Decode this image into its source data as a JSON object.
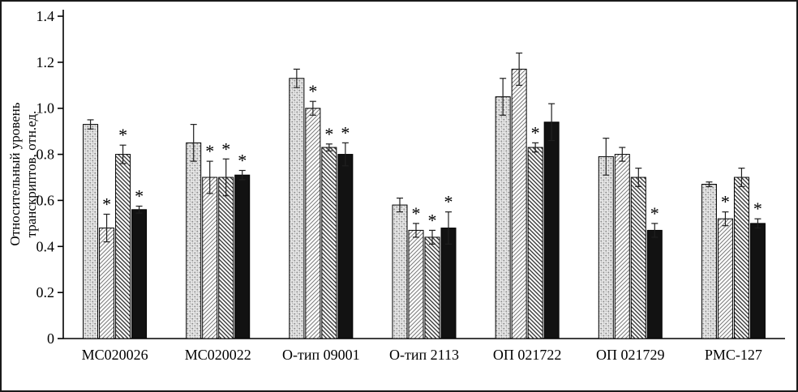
{
  "figure": {
    "kind": "scientific-bar-chart",
    "background": "#ffffff",
    "border_color": "#1a1a1a"
  },
  "y_axis": {
    "label_line1": "Относительный уровень",
    "label_line2": "транскриптов, отн.ед.",
    "min": 0,
    "max": 1.4,
    "step": 0.2,
    "tick_labels": [
      "0",
      "0.2",
      "0.4",
      "0.6",
      "0.8",
      "1.0",
      "1.2",
      "1.4"
    ]
  },
  "chart_data": {
    "type": "bar",
    "title": "",
    "xlabel": "",
    "ylabel": "Относительный уровень транскриптов, отн.ед.",
    "ylim": [
      0,
      1.4
    ],
    "grid": false,
    "legend": "none",
    "significance_marker": "*",
    "categories": [
      "МС020026",
      "МС020022",
      "О-тип 09001",
      "О-тип 2113",
      "ОП 021722",
      "ОП 021729",
      "РМС-127"
    ],
    "series": [
      {
        "name": "dotted",
        "pattern": "dots",
        "values": [
          0.93,
          0.85,
          1.13,
          0.58,
          1.05,
          0.79,
          0.67
        ],
        "errors": [
          0.02,
          0.08,
          0.04,
          0.03,
          0.08,
          0.08,
          0.01
        ],
        "significant": [
          false,
          false,
          false,
          false,
          false,
          false,
          false
        ]
      },
      {
        "name": "hatch-forward",
        "pattern": "hatch-forward",
        "values": [
          0.48,
          0.7,
          1.0,
          0.47,
          1.17,
          0.8,
          0.52
        ],
        "errors": [
          0.06,
          0.07,
          0.03,
          0.03,
          0.07,
          0.03,
          0.03
        ],
        "significant": [
          true,
          true,
          true,
          true,
          false,
          false,
          true
        ]
      },
      {
        "name": "hatch-backward",
        "pattern": "hatch-backward",
        "values": [
          0.8,
          0.7,
          0.83,
          0.44,
          0.83,
          0.7,
          0.7
        ],
        "errors": [
          0.04,
          0.08,
          0.015,
          0.03,
          0.02,
          0.04,
          0.04
        ],
        "significant": [
          true,
          true,
          true,
          true,
          true,
          false,
          false
        ]
      },
      {
        "name": "solid-black",
        "pattern": "solid",
        "values": [
          0.56,
          0.71,
          0.8,
          0.48,
          0.94,
          0.47,
          0.5
        ],
        "errors": [
          0.015,
          0.02,
          0.05,
          0.07,
          0.08,
          0.03,
          0.02
        ],
        "significant": [
          true,
          true,
          true,
          true,
          false,
          true,
          true
        ]
      }
    ]
  }
}
